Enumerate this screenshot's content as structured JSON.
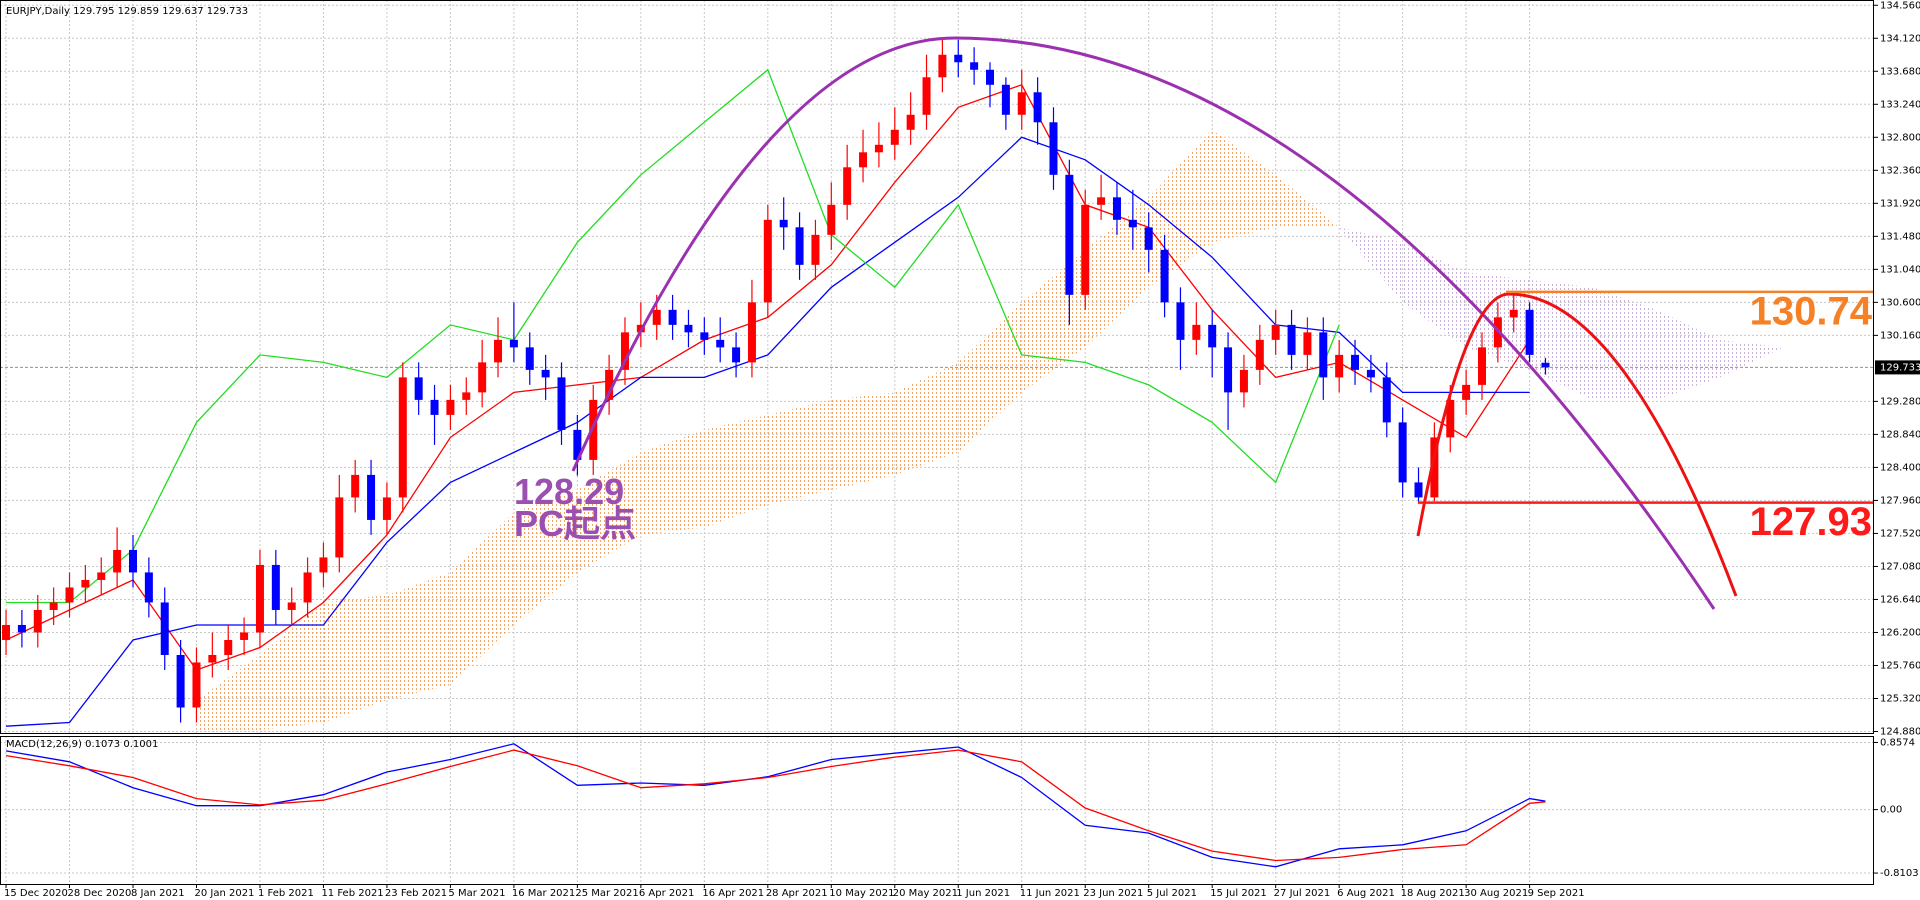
{
  "chart_data": [
    {
      "type": "candlestick",
      "title": "EURJPY,Daily",
      "open": [
        126.1,
        126.3,
        126.2,
        126.5,
        126.6,
        126.8,
        126.9,
        127.0,
        127.3,
        127.0,
        126.6,
        125.9,
        125.2,
        125.8,
        125.9,
        126.1,
        126.2,
        127.1,
        126.5,
        126.6,
        127.0,
        127.2,
        128.0,
        128.3,
        127.7,
        128.0,
        129.6,
        129.3,
        129.1,
        129.3,
        129.4,
        129.8,
        130.1,
        130.0,
        129.7,
        129.6,
        128.9,
        128.5,
        129.3,
        129.7,
        130.2,
        130.3,
        130.5,
        130.3,
        130.2,
        130.1,
        130.0,
        129.8,
        130.6,
        131.7,
        131.6,
        131.1,
        131.5,
        131.9,
        132.4,
        132.6,
        132.7,
        132.9,
        133.1,
        133.6,
        133.9,
        133.8,
        133.7,
        133.5,
        133.1,
        133.4,
        133.0,
        132.3,
        130.7,
        131.9,
        132.0,
        131.7,
        131.6,
        131.3,
        130.6,
        130.1,
        130.3,
        130.0,
        129.4,
        129.7,
        130.1,
        130.3,
        129.9,
        130.2,
        129.6,
        129.9,
        129.7,
        129.6,
        129.0,
        128.2,
        128.0,
        128.8,
        129.3,
        129.5,
        130.0,
        130.4,
        130.5,
        129.795
      ],
      "high": [
        126.5,
        126.5,
        126.7,
        126.8,
        127.0,
        127.1,
        127.2,
        127.6,
        127.5,
        127.2,
        126.8,
        126.1,
        126.0,
        126.2,
        126.3,
        126.4,
        127.3,
        127.3,
        126.8,
        127.2,
        127.4,
        128.3,
        128.5,
        128.5,
        128.2,
        129.8,
        129.8,
        129.5,
        129.5,
        129.6,
        130.1,
        130.4,
        130.6,
        130.2,
        129.9,
        129.8,
        129.1,
        129.5,
        129.9,
        130.4,
        130.6,
        130.7,
        130.7,
        130.5,
        130.4,
        130.4,
        130.2,
        130.9,
        131.9,
        132.0,
        131.8,
        131.7,
        132.2,
        132.7,
        132.9,
        133.0,
        133.2,
        133.4,
        133.9,
        134.1,
        134.1,
        134.0,
        133.8,
        133.6,
        133.7,
        133.6,
        133.2,
        132.5,
        132.1,
        132.3,
        132.2,
        132.1,
        131.8,
        131.5,
        130.8,
        130.6,
        130.5,
        130.2,
        129.9,
        130.3,
        130.5,
        130.5,
        130.4,
        130.4,
        130.1,
        130.1,
        129.9,
        129.8,
        129.2,
        128.4,
        129.0,
        129.5,
        129.7,
        130.2,
        130.6,
        130.74,
        130.6,
        129.859
      ],
      "low": [
        125.9,
        126.0,
        126.0,
        126.3,
        126.4,
        126.6,
        126.7,
        126.8,
        126.8,
        126.4,
        125.7,
        125.0,
        125.0,
        125.6,
        125.7,
        125.9,
        126.0,
        126.3,
        126.3,
        126.4,
        126.8,
        127.0,
        127.8,
        127.5,
        127.5,
        127.8,
        129.1,
        128.7,
        128.9,
        129.1,
        129.2,
        129.6,
        129.8,
        129.5,
        129.3,
        128.7,
        128.29,
        128.3,
        129.1,
        129.5,
        130.0,
        130.1,
        130.1,
        130.0,
        129.9,
        129.8,
        129.6,
        129.6,
        130.4,
        131.3,
        130.9,
        130.9,
        131.3,
        131.7,
        132.2,
        132.4,
        132.5,
        132.7,
        132.9,
        133.4,
        133.6,
        133.5,
        133.2,
        132.9,
        132.9,
        132.7,
        132.1,
        130.3,
        130.5,
        131.7,
        131.5,
        131.3,
        131.0,
        130.4,
        129.7,
        129.9,
        129.6,
        128.9,
        129.2,
        129.5,
        129.9,
        129.7,
        129.7,
        129.3,
        129.4,
        129.5,
        129.4,
        128.8,
        128.0,
        127.93,
        127.95,
        128.6,
        129.1,
        129.3,
        129.8,
        130.2,
        129.8,
        129.637
      ],
      "close": [
        126.3,
        126.2,
        126.5,
        126.6,
        126.8,
        126.9,
        127.0,
        127.3,
        127.0,
        126.6,
        125.9,
        125.2,
        125.8,
        125.9,
        126.1,
        126.2,
        127.1,
        126.5,
        126.6,
        127.0,
        127.2,
        128.0,
        128.3,
        127.7,
        128.0,
        129.6,
        129.3,
        129.1,
        129.3,
        129.4,
        129.8,
        130.1,
        130.0,
        129.7,
        129.6,
        128.9,
        128.5,
        129.3,
        129.7,
        130.2,
        130.3,
        130.5,
        130.3,
        130.2,
        130.1,
        130.0,
        129.8,
        130.6,
        131.7,
        131.6,
        131.1,
        131.5,
        131.9,
        132.4,
        132.6,
        132.7,
        132.9,
        133.1,
        133.6,
        133.9,
        133.8,
        133.7,
        133.5,
        133.1,
        133.4,
        133.0,
        132.3,
        130.7,
        131.9,
        132.0,
        131.7,
        131.6,
        131.3,
        130.6,
        130.1,
        130.3,
        130.0,
        129.4,
        129.7,
        130.1,
        130.3,
        129.9,
        130.2,
        129.6,
        129.9,
        129.7,
        129.6,
        129.0,
        128.2,
        128.0,
        128.8,
        129.3,
        129.5,
        130.0,
        130.4,
        130.5,
        129.9,
        129.733
      ],
      "up_color": "#ff0000",
      "down_color": "#0000ff",
      "series": [
        {
          "color": "#ff0000",
          "x": [
            0,
            4,
            8,
            12,
            16,
            20,
            24,
            28,
            32,
            36,
            40,
            44,
            48,
            52,
            56,
            60,
            64,
            68,
            72,
            76,
            80,
            84,
            88,
            92,
            96
          ],
          "values": [
            126.1,
            126.5,
            126.9,
            125.7,
            126.0,
            126.6,
            127.5,
            128.8,
            129.4,
            129.5,
            129.6,
            130.1,
            130.4,
            131.1,
            132.2,
            133.2,
            133.5,
            131.9,
            131.6,
            130.5,
            129.6,
            129.8,
            129.3,
            128.8,
            130.1
          ]
        },
        {
          "color": "#0000ff",
          "x": [
            0,
            4,
            8,
            12,
            16,
            20,
            24,
            28,
            32,
            36,
            40,
            44,
            48,
            52,
            56,
            60,
            64,
            68,
            72,
            76,
            80,
            84,
            88,
            92,
            96
          ],
          "values": [
            124.95,
            125.0,
            126.1,
            126.3,
            126.3,
            126.3,
            127.4,
            128.2,
            128.6,
            129.0,
            129.6,
            129.6,
            129.9,
            130.8,
            131.4,
            132.0,
            132.8,
            132.5,
            131.9,
            131.2,
            130.3,
            130.2,
            129.4,
            129.4,
            129.4
          ]
        },
        {
          "color": "#22dd22",
          "x": [
            0,
            4,
            8,
            12,
            16,
            20,
            24,
            28,
            32,
            36,
            40,
            44,
            48,
            52,
            56,
            60,
            64,
            68,
            72,
            76,
            80,
            84
          ],
          "values": [
            126.6,
            126.6,
            127.3,
            129.0,
            129.9,
            129.8,
            129.6,
            130.3,
            130.1,
            131.4,
            132.3,
            133.0,
            133.7,
            131.5,
            130.8,
            131.9,
            129.9,
            129.8,
            129.5,
            129.0,
            128.2,
            130.3
          ]
        }
      ],
      "cloud": {
        "x": [
          12,
          16,
          20,
          24,
          28,
          32,
          36,
          40,
          44,
          48,
          52,
          56,
          60,
          64,
          68,
          72,
          76,
          80,
          84,
          88,
          92,
          96,
          100,
          104,
          108,
          112
        ],
        "span_a": [
          125.3,
          125.9,
          126.6,
          126.7,
          127.0,
          127.8,
          128.1,
          128.6,
          128.9,
          129.1,
          129.3,
          129.4,
          129.8,
          130.6,
          131.3,
          132.0,
          132.9,
          132.3,
          131.6,
          130.6,
          130.0,
          129.7,
          129.3,
          129.3,
          129.6,
          130.0
        ],
        "span_b": [
          124.9,
          124.9,
          125.0,
          125.3,
          125.5,
          126.3,
          127.0,
          127.5,
          127.6,
          127.9,
          128.1,
          128.3,
          128.6,
          129.4,
          130.0,
          130.8,
          131.4,
          131.6,
          131.6,
          131.4,
          131.0,
          130.9,
          130.8,
          130.5,
          130.1,
          130.0
        ],
        "up_color": "#f4a460",
        "down_color": "#c9b0d9"
      },
      "annotations": [
        {
          "value": 130.74,
          "color": "#f58025"
        },
        {
          "value": 127.93,
          "color": "#ff1a1a"
        },
        {
          "value": 128.29,
          "text": "PC起点",
          "color": "#9b4fb0"
        }
      ],
      "xlim": [
        -0.38,
        117.7
      ],
      "ylim": [
        124.86,
        134.63
      ],
      "grid": true,
      "yticks": [
        {
          "value": 134.56,
          "label": "134.560"
        },
        {
          "value": 134.12,
          "label": "134.120"
        },
        {
          "value": 133.68,
          "label": "133.680"
        },
        {
          "value": 133.24,
          "label": "133.240"
        },
        {
          "value": 132.8,
          "label": "132.800"
        },
        {
          "value": 132.36,
          "label": "132.360"
        },
        {
          "value": 131.92,
          "label": "131.920"
        },
        {
          "value": 131.48,
          "label": "131.480"
        },
        {
          "value": 131.04,
          "label": "131.040"
        },
        {
          "value": 130.6,
          "label": "130.600"
        },
        {
          "value": 130.16,
          "label": "130.160"
        },
        {
          "value": 129.28,
          "label": "129.280"
        },
        {
          "value": 128.84,
          "label": "128.840"
        },
        {
          "value": 128.4,
          "label": "128.400"
        },
        {
          "value": 127.96,
          "label": "127.960"
        },
        {
          "value": 127.52,
          "label": "127.520"
        },
        {
          "value": 127.08,
          "label": "127.080"
        },
        {
          "value": 126.64,
          "label": "126.640"
        },
        {
          "value": 126.2,
          "label": "126.200"
        },
        {
          "value": 125.76,
          "label": "125.760"
        },
        {
          "value": 125.32,
          "label": "125.320"
        },
        {
          "value": 124.88,
          "label": "124.880"
        }
      ],
      "xticks": [
        {
          "value": 0,
          "label": "15 Dec 2020"
        },
        {
          "value": 4,
          "label": "28 Dec 2020"
        },
        {
          "value": 8,
          "label": "8 Jan 2021"
        },
        {
          "value": 12,
          "label": "20 Jan 2021"
        },
        {
          "value": 16,
          "label": "1 Feb 2021"
        },
        {
          "value": 20,
          "label": "11 Feb 2021"
        },
        {
          "value": 24,
          "label": "23 Feb 2021"
        },
        {
          "value": 28,
          "label": "5 Mar 2021"
        },
        {
          "value": 32,
          "label": "16 Mar 2021"
        },
        {
          "value": 36,
          "label": "25 Mar 2021"
        },
        {
          "value": 40,
          "label": "6 Apr 2021"
        },
        {
          "value": 44,
          "label": "16 Apr 2021"
        },
        {
          "value": 48,
          "label": "28 Apr 2021"
        },
        {
          "value": 52,
          "label": "10 May 2021"
        },
        {
          "value": 56,
          "label": "20 May 2021"
        },
        {
          "value": 60,
          "label": "1 Jun 2021"
        },
        {
          "value": 64,
          "label": "11 Jun 2021"
        },
        {
          "value": 68,
          "label": "23 Jun 2021"
        },
        {
          "value": 72,
          "label": "5 Jul 2021"
        },
        {
          "value": 76,
          "label": "15 Jul 2021"
        },
        {
          "value": 80,
          "label": "27 Jul 2021"
        },
        {
          "value": 84,
          "label": "6 Aug 2021"
        },
        {
          "value": 88,
          "label": "18 Aug 2021"
        },
        {
          "value": 92,
          "label": "30 Aug 2021"
        },
        {
          "value": 96,
          "label": "9 Sep 2021"
        }
      ]
    },
    {
      "type": "line",
      "title": "MACD(12,26,9)",
      "series": [
        {
          "color": "#0000ff",
          "x": [
            0,
            4,
            8,
            12,
            16,
            20,
            24,
            28,
            32,
            36,
            40,
            44,
            48,
            52,
            56,
            60,
            64,
            68,
            72,
            76,
            80,
            84,
            88,
            92,
            96,
            97
          ],
          "values": [
            0.75,
            0.61,
            0.28,
            0.05,
            0.05,
            0.19,
            0.48,
            0.64,
            0.84,
            0.31,
            0.34,
            0.31,
            0.42,
            0.64,
            0.72,
            0.8,
            0.41,
            -0.2,
            -0.3,
            -0.61,
            -0.73,
            -0.5,
            -0.45,
            -0.27,
            0.14,
            0.1073
          ]
        },
        {
          "color": "#ff0000",
          "x": [
            0,
            4,
            8,
            12,
            16,
            20,
            24,
            28,
            32,
            36,
            40,
            44,
            48,
            52,
            56,
            60,
            64,
            68,
            72,
            76,
            80,
            84,
            88,
            92,
            96,
            97
          ],
          "values": [
            0.69,
            0.56,
            0.41,
            0.14,
            0.06,
            0.12,
            0.33,
            0.55,
            0.76,
            0.56,
            0.28,
            0.33,
            0.41,
            0.55,
            0.67,
            0.76,
            0.61,
            0.02,
            -0.27,
            -0.53,
            -0.65,
            -0.61,
            -0.51,
            -0.45,
            0.08,
            0.1001
          ]
        }
      ],
      "xlim": [
        -0.38,
        117.7
      ],
      "ylim": [
        -0.95,
        0.94
      ],
      "grid": true,
      "yticks": [
        0.8574,
        {
          "value": 0,
          "label": "0.00"
        },
        -0.8103
      ]
    }
  ]
}
